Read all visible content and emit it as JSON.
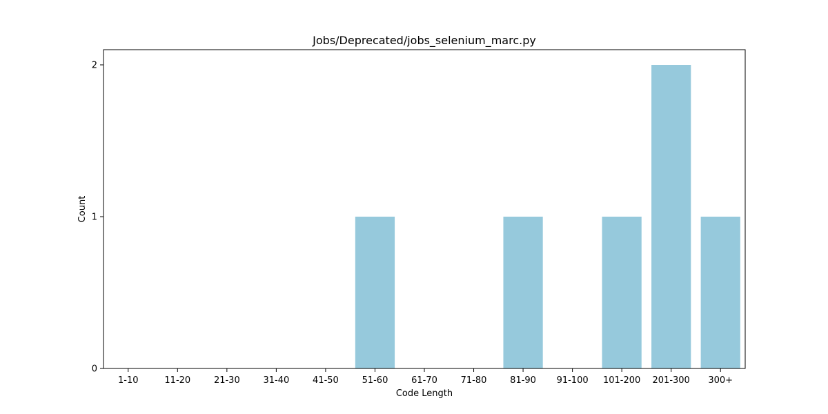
{
  "chart_data": {
    "type": "bar",
    "title": "Jobs/Deprecated/jobs_selenium_marc.py",
    "xlabel": "Code Length",
    "ylabel": "Count",
    "categories": [
      "1-10",
      "11-20",
      "21-30",
      "31-40",
      "41-50",
      "51-60",
      "61-70",
      "71-80",
      "81-90",
      "91-100",
      "101-200",
      "201-300",
      "300+"
    ],
    "values": [
      0,
      0,
      0,
      0,
      0,
      1,
      0,
      0,
      1,
      0,
      1,
      2,
      1
    ],
    "ylim": [
      0,
      2.1
    ],
    "yticks": [
      0,
      1,
      2
    ],
    "bar_color": "#96c9dc",
    "grid": false,
    "legend": "none"
  }
}
